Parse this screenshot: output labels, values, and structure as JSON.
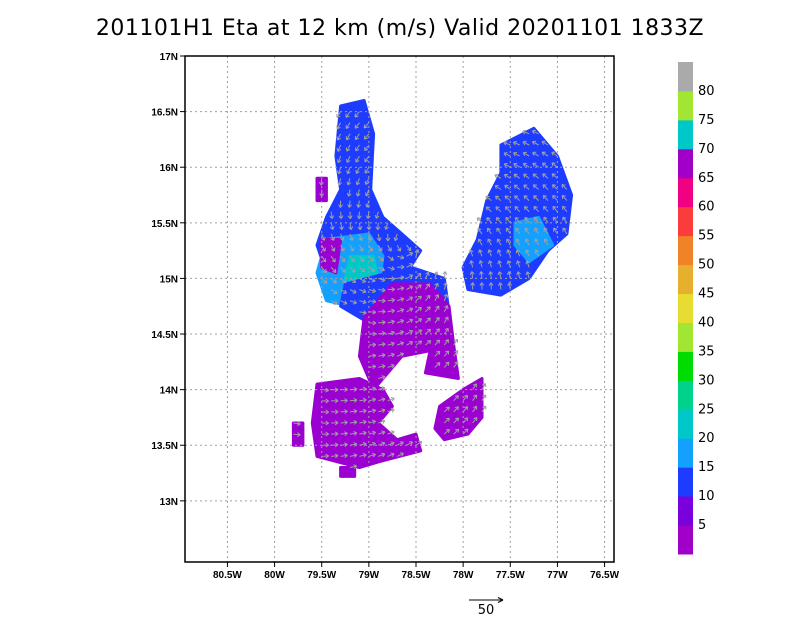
{
  "title": "201101H1 Eta at 12 km (m/s) Valid 20201101 1833Z",
  "map": {
    "lon_range": [
      -80.95,
      -76.4
    ],
    "lat_range": [
      12.45,
      17.0
    ],
    "lon_ticks": [
      {
        "value": -80.5,
        "label": "80.5W"
      },
      {
        "value": -80.0,
        "label": "80W"
      },
      {
        "value": -79.5,
        "label": "79.5W"
      },
      {
        "value": -79.0,
        "label": "79W"
      },
      {
        "value": -78.5,
        "label": "78.5W"
      },
      {
        "value": -78.0,
        "label": "78W"
      },
      {
        "value": -77.5,
        "label": "77.5W"
      },
      {
        "value": -77.0,
        "label": "77W"
      },
      {
        "value": -76.5,
        "label": "76.5W"
      }
    ],
    "lat_ticks": [
      {
        "value": 13.0,
        "label": "13N"
      },
      {
        "value": 13.5,
        "label": "13.5N"
      },
      {
        "value": 14.0,
        "label": "14N"
      },
      {
        "value": 14.5,
        "label": "14.5N"
      },
      {
        "value": 15.0,
        "label": "15N"
      },
      {
        "value": 15.5,
        "label": "15.5N"
      },
      {
        "value": 16.0,
        "label": "16N"
      },
      {
        "value": 16.5,
        "label": "16.5N"
      },
      {
        "value": 17.0,
        "label": "17N"
      }
    ],
    "grid": true,
    "colors": {
      "c0": "#9a00d0",
      "c5": "#7a00e0",
      "c10": "#1e3cff",
      "c15": "#14a0ff",
      "c20": "#00c8c8",
      "vector": "#a0a0a0"
    }
  },
  "colorbar": {
    "labels": [
      "5",
      "10",
      "15",
      "20",
      "25",
      "30",
      "35",
      "40",
      "45",
      "50",
      "55",
      "60",
      "65",
      "70",
      "75",
      "80"
    ],
    "colors": [
      "#a000c8",
      "#7a00dc",
      "#1e3cff",
      "#14a0ff",
      "#00c8c8",
      "#00d28c",
      "#00dc00",
      "#a0e632",
      "#e6dc32",
      "#e6af2d",
      "#f08228",
      "#fa3c3c",
      "#f00082",
      "#a000c8",
      "#00c8c8",
      "#a0e632",
      "#aaaaaa"
    ]
  },
  "reference_vector": {
    "label": "50"
  }
}
